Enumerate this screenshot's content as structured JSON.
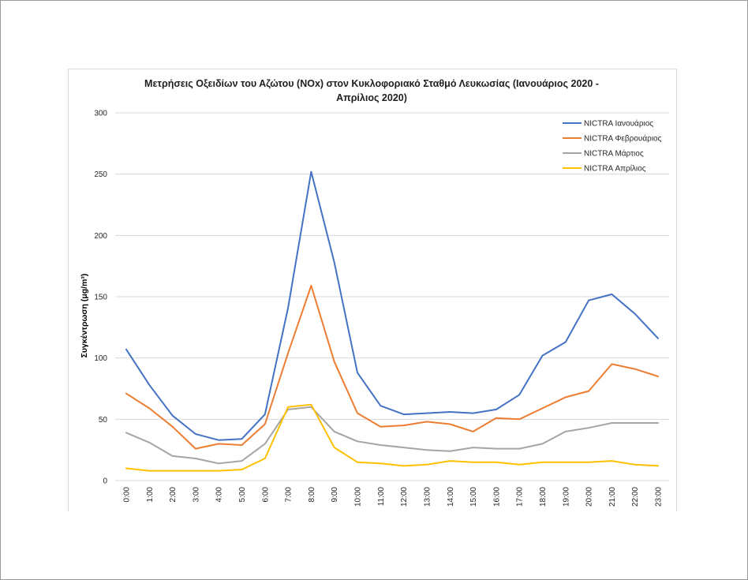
{
  "chart_data": {
    "type": "line",
    "title_line1": "Μετρήσεις Οξειδίων του Αζώτου (NOx) στον Κυκλοφοριακό Σταθμό Λευκωσίας (Ιανουάριος 2020 -",
    "title_line2": "Απρίλιος 2020)",
    "ylabel": "Συγκέντρωση (μg/m³)",
    "xlabel": "",
    "ylim": [
      0,
      300
    ],
    "yticks": [
      0,
      50,
      100,
      150,
      200,
      250,
      300
    ],
    "grid": true,
    "legend_position": "top-right",
    "categories": [
      "0:00",
      "1:00",
      "2:00",
      "3:00",
      "4:00",
      "5:00",
      "6:00",
      "7:00",
      "8:00",
      "9:00",
      "10:00",
      "11:00",
      "12:00",
      "13:00",
      "14:00",
      "15:00",
      "16:00",
      "17:00",
      "18:00",
      "19:00",
      "20:00",
      "21:00",
      "22:00",
      "23:00"
    ],
    "series": [
      {
        "name": "NICTRA Ιανουάριος",
        "color": "#4472c4",
        "values": [
          107,
          78,
          53,
          38,
          33,
          34,
          54,
          141,
          252,
          178,
          88,
          61,
          54,
          55,
          56,
          55,
          58,
          70,
          102,
          113,
          147,
          152,
          136,
          116
        ]
      },
      {
        "name": "NICTRA Φεβρουάριος",
        "color": "#ed7d31",
        "values": [
          71,
          59,
          44,
          26,
          30,
          29,
          46,
          104,
          159,
          97,
          55,
          44,
          45,
          48,
          46,
          40,
          51,
          50,
          59,
          68,
          73,
          95,
          91,
          85
        ]
      },
      {
        "name": "NICTRA Μάρτιος",
        "color": "#a5a5a5",
        "values": [
          39,
          31,
          20,
          18,
          14,
          16,
          30,
          58,
          60,
          40,
          32,
          29,
          27,
          25,
          24,
          27,
          26,
          26,
          30,
          40,
          43,
          47,
          47,
          47
        ]
      },
      {
        "name": "NICTRA Απρίλιος",
        "color": "#ffc000",
        "values": [
          10,
          8,
          8,
          8,
          8,
          9,
          18,
          60,
          62,
          27,
          15,
          14,
          12,
          13,
          16,
          15,
          15,
          13,
          15,
          15,
          15,
          16,
          13,
          12
        ]
      }
    ]
  }
}
